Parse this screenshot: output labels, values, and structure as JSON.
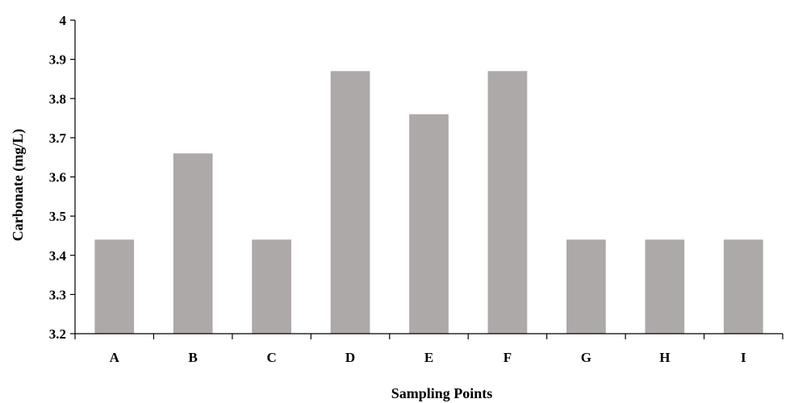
{
  "chart_data": {
    "type": "bar",
    "title": "",
    "xlabel": "Sampling Points",
    "ylabel": "Carbonate (mg/L)",
    "categories": [
      "A",
      "B",
      "C",
      "D",
      "E",
      "F",
      "G",
      "H",
      "I"
    ],
    "values": [
      3.44,
      3.66,
      3.44,
      3.87,
      3.76,
      3.87,
      3.44,
      3.44,
      3.44
    ],
    "ylim": [
      3.2,
      4.0
    ],
    "yticks": [
      "3.2",
      "3.3",
      "3.4",
      "3.5",
      "3.6",
      "3.7",
      "3.8",
      "3.9",
      "4"
    ],
    "grid": false,
    "legend": "none",
    "bar_color": "#ADA9A8"
  }
}
